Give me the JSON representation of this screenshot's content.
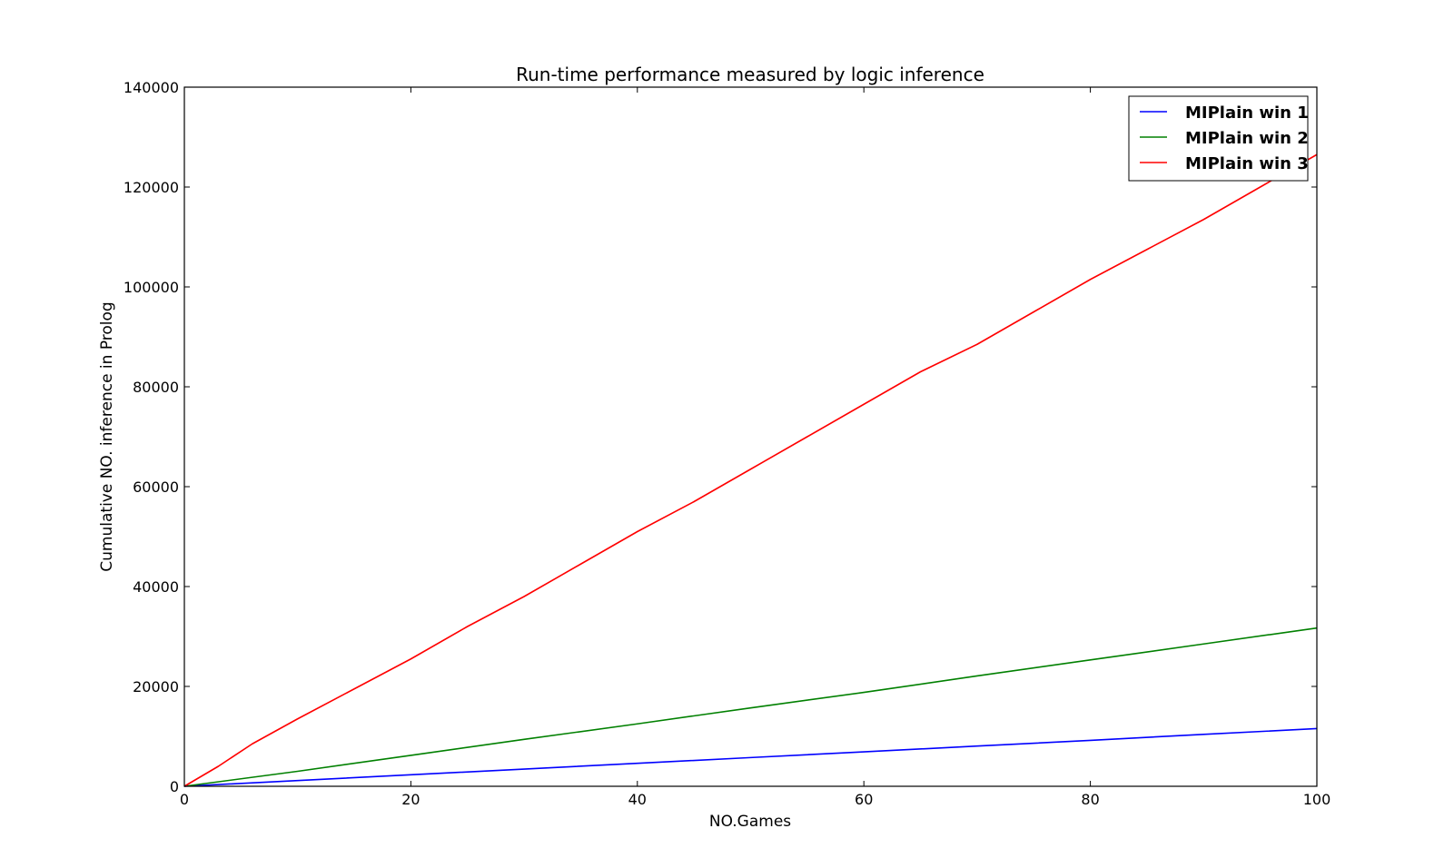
{
  "chart_data": {
    "type": "line",
    "title": "Run-time performance measured by logic inference",
    "xlabel": "NO.Games",
    "ylabel": "Cumulative NO. inference in Prolog",
    "xlim": [
      0,
      100
    ],
    "ylim": [
      0,
      140000
    ],
    "x_ticks": [
      0,
      20,
      40,
      60,
      80,
      100
    ],
    "y_ticks": [
      0,
      20000,
      40000,
      60000,
      80000,
      100000,
      120000,
      140000
    ],
    "grid": false,
    "legend_position": "top-right",
    "series": [
      {
        "name": "MIPlain win 1",
        "color": "#0000ff",
        "x": [
          0,
          10,
          20,
          30,
          40,
          50,
          60,
          70,
          80,
          90,
          100
        ],
        "values": [
          0,
          1150,
          2300,
          3450,
          4600,
          5750,
          6900,
          8050,
          9200,
          10400,
          11550
        ]
      },
      {
        "name": "MIPlain win 2",
        "color": "#008000",
        "x": [
          0,
          10,
          20,
          30,
          40,
          50,
          60,
          70,
          80,
          90,
          100
        ],
        "values": [
          0,
          3000,
          6200,
          9400,
          12500,
          15700,
          18800,
          22100,
          25300,
          28500,
          31700
        ]
      },
      {
        "name": "MIPlain win 3",
        "color": "#ff0000",
        "x": [
          0,
          3,
          6,
          10,
          15,
          20,
          25,
          30,
          35,
          40,
          45,
          50,
          55,
          60,
          65,
          70,
          75,
          80,
          85,
          90,
          95,
          100
        ],
        "values": [
          0,
          4000,
          8500,
          13500,
          19500,
          25500,
          32000,
          38000,
          44500,
          51000,
          57000,
          63500,
          70000,
          76500,
          83000,
          88500,
          95000,
          101500,
          107500,
          113500,
          120000,
          126500
        ]
      }
    ]
  }
}
